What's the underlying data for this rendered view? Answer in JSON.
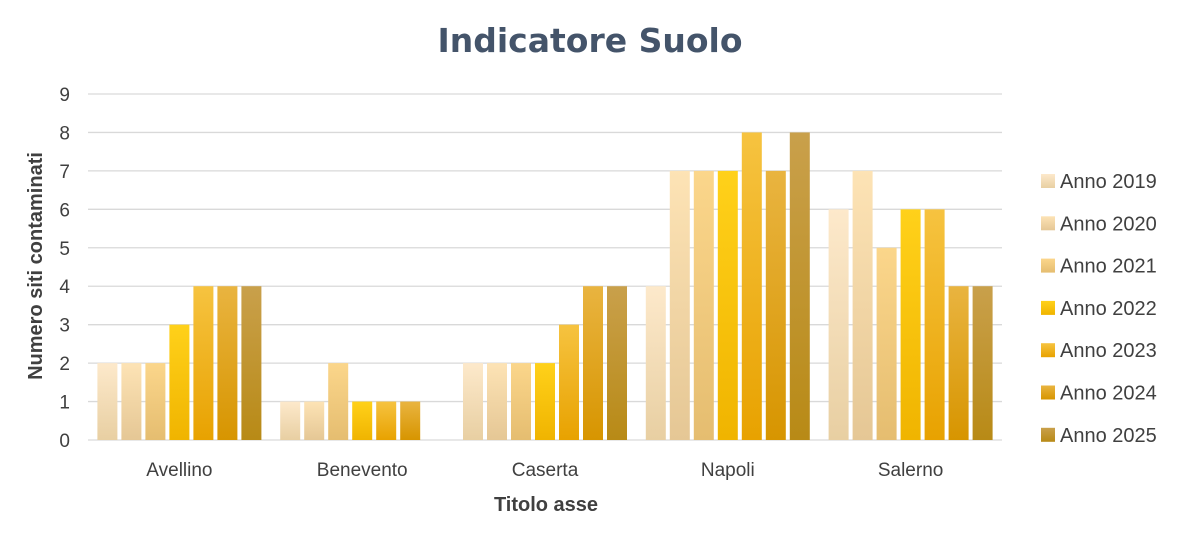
{
  "chart_data": {
    "type": "bar",
    "title": "Indicatore Suolo",
    "xlabel": "Titolo asse",
    "ylabel": "Numero siti contaminati",
    "ylim": [
      0,
      9
    ],
    "yticks": [
      "0",
      "1",
      "2",
      "3",
      "4",
      "5",
      "6",
      "7",
      "8",
      "9"
    ],
    "grid": true,
    "legend_position": "right",
    "categories": [
      "Avellino",
      "Benevento",
      "Caserta",
      "Napoli",
      "Salerno"
    ],
    "series": [
      {
        "name": "Anno 2019",
        "values": [
          2,
          1,
          2,
          4,
          6
        ],
        "color_top": "#fde9cb",
        "color_bottom": "#e8cfa2"
      },
      {
        "name": "Anno 2020",
        "values": [
          2,
          1,
          2,
          7,
          7
        ],
        "color_top": "#fde3b5",
        "color_bottom": "#e5c795"
      },
      {
        "name": "Anno 2021",
        "values": [
          2,
          2,
          2,
          7,
          5
        ],
        "color_top": "#fbd68b",
        "color_bottom": "#e5bd70"
      },
      {
        "name": "Anno 2022",
        "values": [
          3,
          1,
          2,
          7,
          6
        ],
        "color_top": "#ffd11a",
        "color_bottom": "#f0b400"
      },
      {
        "name": "Anno 2023",
        "values": [
          4,
          1,
          3,
          8,
          6
        ],
        "color_top": "#f6c340",
        "color_bottom": "#e8a200"
      },
      {
        "name": "Anno 2024",
        "values": [
          4,
          1,
          4,
          7,
          4
        ],
        "color_top": "#e9b440",
        "color_bottom": "#d79500"
      },
      {
        "name": "Anno 2025",
        "values": [
          4,
          0,
          4,
          8,
          4
        ],
        "color_top": "#c9a04b",
        "color_bottom": "#b88a16"
      }
    ]
  }
}
